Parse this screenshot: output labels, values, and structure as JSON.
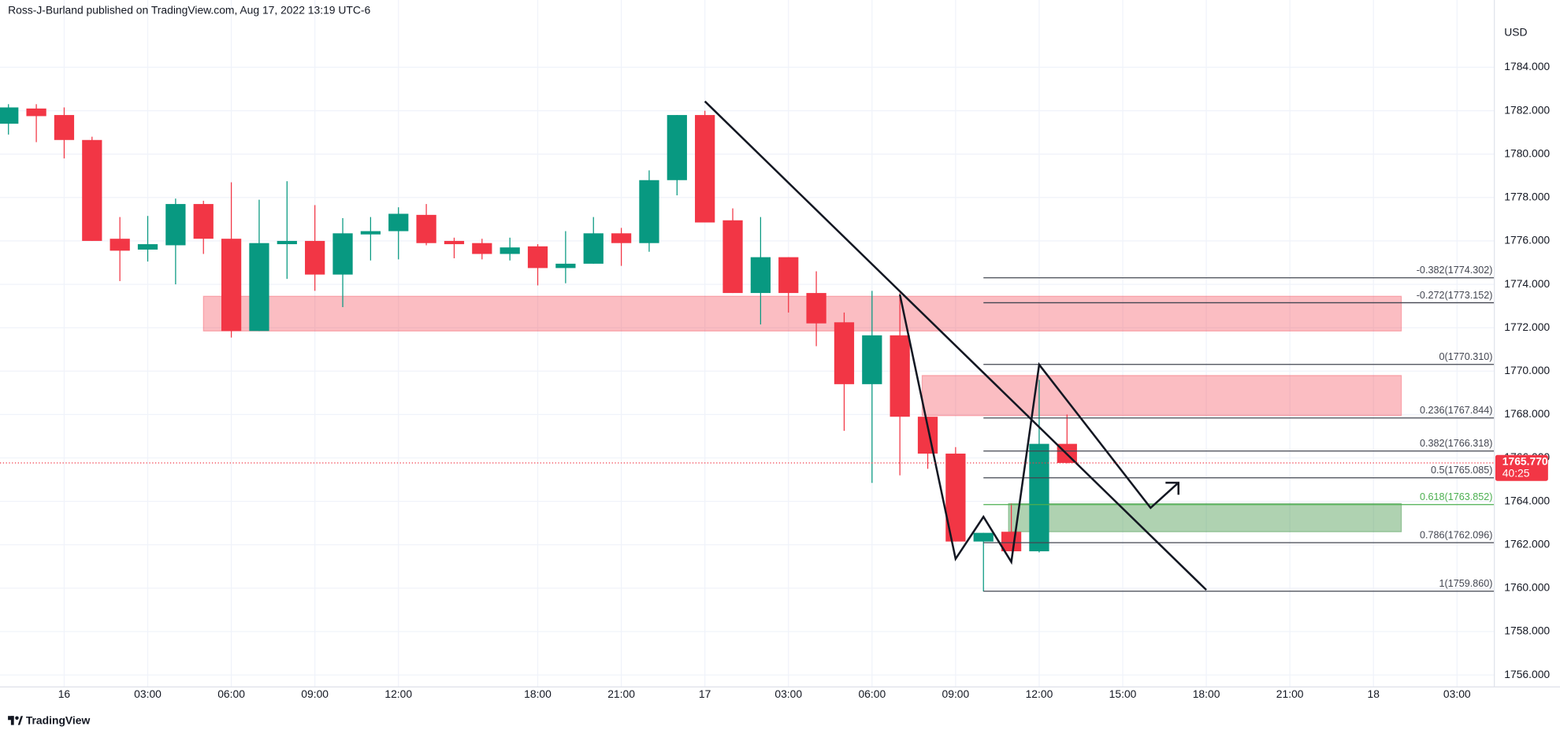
{
  "chart_data": {
    "type": "candlestick",
    "title": "Ross-J-Burland published on TradingView.com, Aug 17, 2022 13:19 UTC-6",
    "currency": "USD",
    "brand": "TradingView",
    "categories": [
      null,
      null,
      "16",
      null,
      null,
      "03:00",
      null,
      null,
      "06:00",
      null,
      null,
      "09:00",
      null,
      null,
      "12:00",
      null,
      null,
      null,
      null,
      "18:00",
      null,
      null,
      "21:00",
      null,
      null,
      "17",
      null,
      null,
      "03:00",
      null,
      null,
      "06:00",
      null,
      null,
      "09:00",
      null,
      null,
      "12:00",
      null,
      null,
      "15:00",
      null,
      null,
      "18:00",
      null,
      null,
      "21:00",
      null,
      null,
      "18",
      null,
      null,
      "03:00",
      null
    ],
    "open": [
      1781.4,
      1782.1,
      1781.8,
      1780.65,
      1776.1,
      1775.6,
      1775.8,
      1777.7,
      1776.1,
      1771.85,
      1775.85,
      1776.0,
      1774.45,
      1776.3,
      1776.45,
      1777.2,
      1776.0,
      1775.9,
      1775.4,
      1775.75,
      1774.75,
      1774.95,
      1776.35,
      1775.9,
      1778.8,
      1781.8,
      1776.95,
      1773.6,
      1775.25,
      1773.6,
      1772.25,
      1769.4,
      1771.65,
      1767.9,
      1766.2,
      1762.15,
      1762.6,
      1761.7,
      1766.65,
      null,
      null,
      null,
      null,
      null,
      null,
      null,
      null,
      null,
      null,
      null,
      null,
      null,
      null,
      null
    ],
    "high": [
      1782.3,
      1782.3,
      1782.15,
      1780.8,
      1777.1,
      1777.15,
      1777.95,
      1777.85,
      1778.7,
      1777.9,
      1778.75,
      1777.65,
      1777.05,
      1777.1,
      1777.55,
      1777.7,
      1776.15,
      1776.1,
      1776.15,
      1775.85,
      1776.45,
      1777.1,
      1776.6,
      1779.25,
      1781.8,
      1782.0,
      1777.5,
      1777.1,
      1775.25,
      1774.6,
      1772.7,
      1773.7,
      1773.6,
      1767.9,
      1766.5,
      1762.55,
      1763.9,
      1769.6,
      1768.0,
      null,
      null,
      null,
      null,
      null,
      null,
      null,
      null,
      null,
      null,
      null,
      null,
      null,
      null,
      null
    ],
    "low": [
      1780.9,
      1780.55,
      1779.8,
      1776.0,
      1774.15,
      1775.05,
      1774.0,
      1775.4,
      1771.55,
      1771.85,
      1774.25,
      1773.7,
      1772.95,
      1775.1,
      1775.15,
      1775.8,
      1775.2,
      1775.15,
      1775.1,
      1773.95,
      1774.05,
      1774.95,
      1774.85,
      1775.5,
      1778.1,
      1776.85,
      1773.6,
      1772.15,
      1772.7,
      1771.15,
      1767.25,
      1764.85,
      1765.2,
      1765.5,
      1762.15,
      1759.85,
      1761.7,
      1761.65,
      1765.75,
      null,
      null,
      null,
      null,
      null,
      null,
      null,
      null,
      null,
      null,
      null,
      null,
      null,
      null,
      null
    ],
    "close": [
      1782.15,
      1781.75,
      1780.65,
      1776.0,
      1775.55,
      1775.85,
      1777.7,
      1776.1,
      1771.85,
      1775.9,
      1776.0,
      1774.45,
      1776.35,
      1776.45,
      1777.25,
      1775.9,
      1775.85,
      1775.4,
      1775.7,
      1774.75,
      1774.95,
      1776.35,
      1775.9,
      1778.8,
      1781.8,
      1776.85,
      1773.6,
      1775.25,
      1773.6,
      1772.2,
      1769.4,
      1771.65,
      1767.9,
      1766.2,
      1762.15,
      1762.55,
      1761.7,
      1766.65,
      1765.77,
      null,
      null,
      null,
      null,
      null,
      null,
      null,
      null,
      null,
      null,
      null,
      null,
      null,
      null,
      null
    ],
    "up_color": "#089981",
    "down_color": "#f23645",
    "ylim": [
      1755.45,
      1787.1
    ],
    "yticks": [
      {
        "value": 1756,
        "label": "1756.000"
      },
      {
        "value": 1758,
        "label": "1758.000"
      },
      {
        "value": 1760,
        "label": "1760.000"
      },
      {
        "value": 1762,
        "label": "1762.000"
      },
      {
        "value": 1764,
        "label": "1764.000"
      },
      {
        "value": 1766,
        "label": "1766.000"
      },
      {
        "value": 1768,
        "label": "1768.000"
      },
      {
        "value": 1770,
        "label": "1770.000"
      },
      {
        "value": 1772,
        "label": "1772.000"
      },
      {
        "value": 1774,
        "label": "1774.000"
      },
      {
        "value": 1776,
        "label": "1776.000"
      },
      {
        "value": 1778,
        "label": "1778.000"
      },
      {
        "value": 1780,
        "label": "1780.000"
      },
      {
        "value": 1782,
        "label": "1782.000"
      },
      {
        "value": 1784,
        "label": "1784.000"
      }
    ],
    "grid": true,
    "zones": [
      {
        "x": [
          7,
          50
        ],
        "y": [
          1771.85,
          1773.45
        ],
        "color": "rgba(242,54,69,0.33)"
      },
      {
        "x": [
          32.8,
          50
        ],
        "y": [
          1767.95,
          1769.8
        ],
        "color": "rgba(242,54,69,0.33)"
      },
      {
        "x": [
          35.9,
          50
        ],
        "y": [
          1762.6,
          1763.9
        ],
        "color": "rgba(56,142,60,0.4)"
      }
    ],
    "lines": [
      {
        "x": [
          25,
          43
        ],
        "y": [
          1782.43,
          1759.92
        ],
        "color": "#131722"
      },
      {
        "x": [
          32,
          34,
          35,
          36,
          37,
          41,
          42
        ],
        "y": [
          1773.53,
          1761.35,
          1763.29,
          1761.21,
          1770.3,
          1763.7,
          1764.86
        ],
        "color": "#131722"
      }
    ],
    "fib": {
      "x": [
        35,
        53.35
      ],
      "levels": [
        {
          "value": 1774.302,
          "label": "-0.382(1774.302)",
          "color": "#434651"
        },
        {
          "value": 1773.152,
          "label": "-0.272(1773.152)",
          "color": "#434651"
        },
        {
          "value": 1770.31,
          "label": "0(1770.310)",
          "color": "#434651"
        },
        {
          "value": 1767.844,
          "label": "0.236(1767.844)",
          "color": "#434651"
        },
        {
          "value": 1766.318,
          "label": "0.382(1766.318)",
          "color": "#434651"
        },
        {
          "value": 1765.085,
          "label": "0.5(1765.085)",
          "color": "#434651"
        },
        {
          "value": 1763.852,
          "label": "0.618(1763.852)",
          "color": "#4caf50"
        },
        {
          "value": 1762.096,
          "label": "0.786(1762.096)",
          "color": "#434651"
        },
        {
          "value": 1759.86,
          "label": "1(1759.860)",
          "color": "#434651"
        }
      ]
    },
    "last": {
      "value": 1765.77,
      "label": "1765.770",
      "countdown": "40:25",
      "color": "#f23645"
    }
  }
}
